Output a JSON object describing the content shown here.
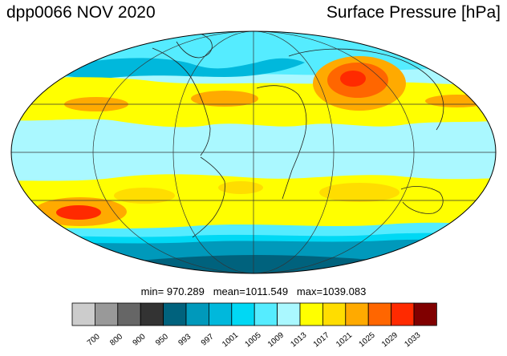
{
  "header": {
    "title_left": "dpp0066 NOV 2020",
    "title_right": "Surface Pressure [hPa]"
  },
  "stats": {
    "min_label": "min=",
    "min_value": "970.289",
    "mean_label": "mean=",
    "mean_value": "1011.549",
    "max_label": "max=",
    "max_value": "1039.083"
  },
  "colorbar": {
    "levels": [
      "700",
      "800",
      "900",
      "950",
      "993",
      "997",
      "1001",
      "1005",
      "1009",
      "1013",
      "1017",
      "1021",
      "1025",
      "1029",
      "1033"
    ],
    "colors": [
      "#cccccc",
      "#999999",
      "#666666",
      "#333333",
      "#00627d",
      "#0099bb",
      "#00b8dc",
      "#00d8f4",
      "#55ecff",
      "#aaf8ff",
      "#ffff00",
      "#ffdd00",
      "#ffaa00",
      "#ff6600",
      "#ff2a00",
      "#800000"
    ]
  },
  "map": {
    "projection": "mollweide",
    "palette": {
      "deep_low": "#00627d",
      "low": "#0099bb",
      "mid_low": "#00b8dc",
      "cyan": "#00d8f4",
      "light_cyan": "#55ecff",
      "pale": "#aaf8ff",
      "yellow": "#ffff00",
      "gold": "#ffdd00",
      "orange": "#ffaa00",
      "dark_orange": "#ff6600",
      "red": "#ff2a00",
      "dark_red": "#800000"
    }
  }
}
